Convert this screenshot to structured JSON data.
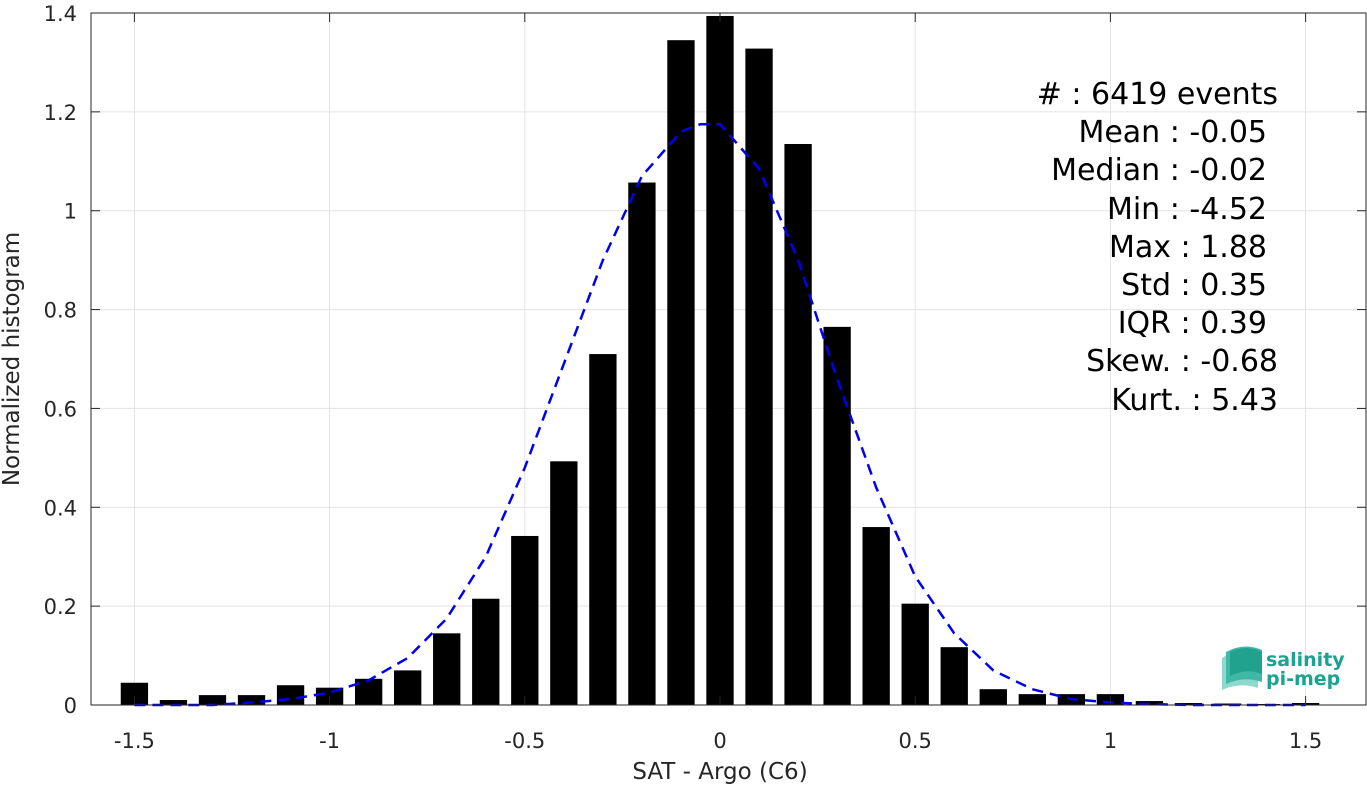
{
  "chart_data": {
    "type": "bar",
    "xlabel": "SAT - Argo (C6)",
    "ylabel": "Normalized histogram",
    "xlim": [
      -1.6,
      1.6
    ],
    "ylim": [
      0,
      1.4
    ],
    "xticks": [
      -1.5,
      -1,
      -0.5,
      0,
      0.5,
      1,
      1.5
    ],
    "xtick_labels": [
      "-1.5",
      "-1",
      "-0.5",
      "0",
      "0.5",
      "1",
      "1.5"
    ],
    "yticks": [
      0,
      0.2,
      0.4,
      0.6,
      0.8,
      1,
      1.2,
      1.4
    ],
    "ytick_labels": [
      "0",
      "0.2",
      "0.4",
      "0.6",
      "0.8",
      "1",
      "1.2",
      "1.4"
    ],
    "grid": true,
    "bin_width": 0.1,
    "bar_color": "#000000",
    "curve_color": "#0000ee",
    "bins": [
      {
        "x": -1.5,
        "value": 0.045
      },
      {
        "x": -1.4,
        "value": 0.01
      },
      {
        "x": -1.3,
        "value": 0.02
      },
      {
        "x": -1.2,
        "value": 0.02
      },
      {
        "x": -1.1,
        "value": 0.04
      },
      {
        "x": -1.0,
        "value": 0.035
      },
      {
        "x": -0.9,
        "value": 0.053
      },
      {
        "x": -0.8,
        "value": 0.07
      },
      {
        "x": -0.7,
        "value": 0.145
      },
      {
        "x": -0.6,
        "value": 0.215
      },
      {
        "x": -0.5,
        "value": 0.342
      },
      {
        "x": -0.4,
        "value": 0.493
      },
      {
        "x": -0.3,
        "value": 0.71
      },
      {
        "x": -0.2,
        "value": 1.057
      },
      {
        "x": -0.1,
        "value": 1.345
      },
      {
        "x": 0.0,
        "value": 1.394
      },
      {
        "x": 0.1,
        "value": 1.328
      },
      {
        "x": 0.2,
        "value": 1.135
      },
      {
        "x": 0.3,
        "value": 0.765
      },
      {
        "x": 0.4,
        "value": 0.36
      },
      {
        "x": 0.5,
        "value": 0.205
      },
      {
        "x": 0.6,
        "value": 0.117
      },
      {
        "x": 0.7,
        "value": 0.032
      },
      {
        "x": 0.8,
        "value": 0.022
      },
      {
        "x": 0.9,
        "value": 0.022
      },
      {
        "x": 1.0,
        "value": 0.022
      },
      {
        "x": 1.1,
        "value": 0.008
      },
      {
        "x": 1.2,
        "value": 0.004
      },
      {
        "x": 1.3,
        "value": 0.003
      },
      {
        "x": 1.4,
        "value": 0.002
      },
      {
        "x": 1.5,
        "value": 0.004
      }
    ],
    "fit_curve": {
      "style": "dashed",
      "x": [
        -1.5,
        -1.4,
        -1.3,
        -1.2,
        -1.1,
        -1.0,
        -0.9,
        -0.8,
        -0.7,
        -0.6,
        -0.5,
        -0.4,
        -0.3,
        -0.2,
        -0.1,
        -0.05,
        0.0,
        0.1,
        0.2,
        0.3,
        0.4,
        0.5,
        0.6,
        0.7,
        0.8,
        0.9,
        1.0,
        1.1,
        1.2,
        1.3,
        1.4,
        1.5
      ],
      "y": [
        0.0,
        0.0,
        0.0,
        0.005,
        0.012,
        0.025,
        0.05,
        0.095,
        0.175,
        0.3,
        0.48,
        0.69,
        0.9,
        1.07,
        1.16,
        1.175,
        1.175,
        1.085,
        0.9,
        0.66,
        0.44,
        0.26,
        0.145,
        0.07,
        0.032,
        0.012,
        0.005,
        0.002,
        0.0,
        0.0,
        0.0,
        0.0
      ]
    }
  },
  "stats": [
    {
      "label": "#  : 6419 events"
    },
    {
      "label": "Mean : -0.05"
    },
    {
      "label": "Median : -0.02"
    },
    {
      "label": "Min : -4.52"
    },
    {
      "label": "Max : 1.88"
    },
    {
      "label": "Std : 0.35"
    },
    {
      "label": "IQR : 0.39"
    },
    {
      "label": "Skew. : -0.68"
    },
    {
      "label": "Kurt. : 5.43"
    }
  ],
  "logo": {
    "line1": "salinity",
    "line2": "pi-mep",
    "color": "#1aa392"
  }
}
